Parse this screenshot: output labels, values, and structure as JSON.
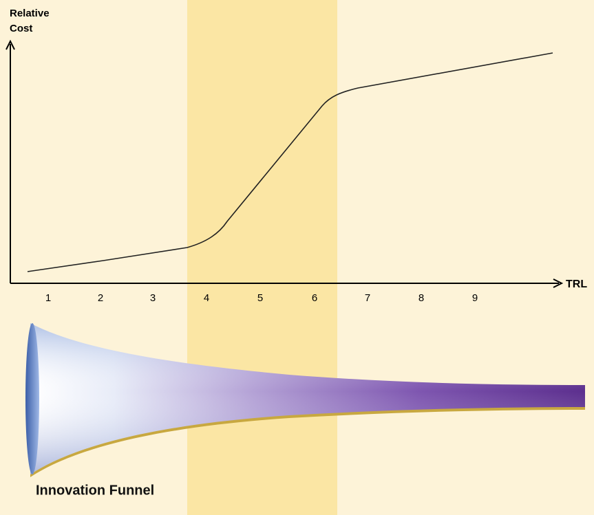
{
  "y_axis_label": [
    "Relative",
    "Cost"
  ],
  "x_axis_label": "TRL",
  "x_tick_labels": [
    "1",
    "2",
    "3",
    "4",
    "5",
    "6",
    "7",
    "8",
    "9"
  ],
  "funnel_label": "Innovation Funnel"
}
